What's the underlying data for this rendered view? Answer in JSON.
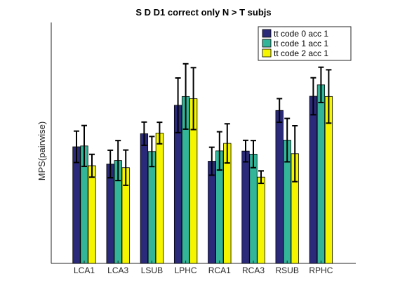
{
  "chart_data": {
    "type": "bar",
    "title": "S D D1 correct only N > T subjs",
    "xlabel": "",
    "ylabel": "MPS(pairwise)",
    "categories": [
      "LCA1",
      "LCA3",
      "LSUB",
      "LPHC",
      "RCA1",
      "RCA3",
      "RSUB",
      "RPHC"
    ],
    "y_ticks_visible": false,
    "legend_position": "top-right",
    "series": [
      {
        "name": "tt code 0 acc 1",
        "color": "#2b2a7a",
        "values": [
          0.542,
          0.462,
          0.603,
          0.735,
          0.475,
          0.522,
          0.711,
          0.777
        ],
        "errors": [
          0.073,
          0.064,
          0.054,
          0.127,
          0.065,
          0.05,
          0.055,
          0.086
        ]
      },
      {
        "name": "tt code 1 acc 1",
        "color": "#32b598",
        "values": [
          0.546,
          0.478,
          0.52,
          0.776,
          0.523,
          0.508,
          0.573,
          0.83
        ],
        "errors": [
          0.095,
          0.093,
          0.07,
          0.152,
          0.089,
          0.063,
          0.101,
          0.082
        ]
      },
      {
        "name": "tt code 2 acc 1",
        "color": "#f5f500",
        "values": [
          0.454,
          0.445,
          0.606,
          0.766,
          0.558,
          0.401,
          0.51,
          0.776
        ],
        "errors": [
          0.053,
          0.082,
          0.05,
          0.144,
          0.091,
          0.029,
          0.13,
          0.124
        ]
      }
    ],
    "ylim": [
      0,
      1.12
    ],
    "grid": false
  }
}
